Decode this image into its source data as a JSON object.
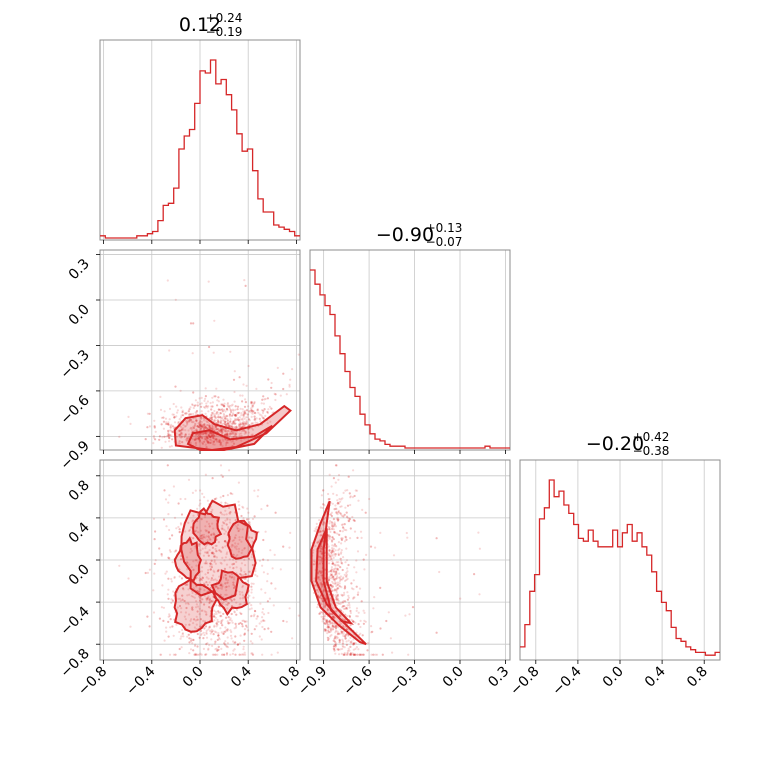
{
  "chart_data": {
    "type": "corner",
    "color": "#d62728",
    "params": [
      {
        "median": "0.12",
        "plus": "+0.24",
        "minus": "−0.19",
        "range": [
          -0.83,
          0.83
        ],
        "ticks": [
          -0.8,
          -0.4,
          0.0,
          0.4,
          0.8
        ],
        "tick_labels": [
          "−0.8",
          "−0.4",
          "0.0",
          "0.4",
          "0.8"
        ]
      },
      {
        "median": "−0.90",
        "plus": "+0.13",
        "minus": "−0.07",
        "range": [
          -0.99,
          0.33
        ],
        "ticks": [
          -0.9,
          -0.6,
          -0.3,
          0.0,
          0.3
        ],
        "tick_labels": [
          "−0.9",
          "−0.6",
          "−0.3",
          "0.0",
          "0.3"
        ]
      },
      {
        "median": "−0.20",
        "plus": "+0.42",
        "minus": "−0.38",
        "range": [
          -0.95,
          0.95
        ],
        "ticks": [
          -0.8,
          -0.4,
          0.0,
          0.4,
          0.8
        ],
        "tick_labels": [
          "−0.8",
          "−0.4",
          "0.0",
          "0.4",
          "0.8"
        ]
      }
    ],
    "titles": [
      {
        "main": "0.12",
        "sup": "+0.24",
        "sub": "−0.19"
      },
      {
        "main": "−0.90",
        "sup": "+0.13",
        "sub": "−0.07"
      },
      {
        "main": "−0.20",
        "sup": "+0.42",
        "sub": "−0.38"
      }
    ],
    "histograms": [
      {
        "name": "param-1",
        "counts": [
          1,
          0,
          0,
          0,
          0,
          0,
          0,
          1,
          1,
          2,
          3,
          8,
          15,
          16,
          23,
          41,
          47,
          50,
          62,
          77,
          76,
          82,
          71,
          73,
          66,
          59,
          48,
          40,
          41,
          31,
          18,
          12,
          12,
          6,
          5,
          4,
          3,
          1
        ]
      },
      {
        "name": "param-2",
        "counts": [
          100,
          92,
          86,
          80,
          75,
          63,
          53,
          43,
          34,
          29,
          19,
          13,
          8,
          5,
          4,
          2,
          1,
          1,
          1,
          0,
          0,
          0,
          0,
          0,
          0,
          0,
          0,
          0,
          0,
          0,
          0,
          0,
          0,
          0,
          0,
          1,
          0,
          0,
          0,
          0
        ]
      },
      {
        "name": "param-3",
        "counts": [
          4,
          12,
          24,
          30,
          50,
          54,
          64,
          58,
          60,
          55,
          52,
          48,
          43,
          42,
          46,
          42,
          40,
          40,
          40,
          46,
          40,
          45,
          48,
          42,
          45,
          40,
          37,
          31,
          24,
          20,
          17,
          11,
          7,
          6,
          4,
          3,
          2,
          2,
          1,
          1,
          2
        ]
      }
    ]
  }
}
